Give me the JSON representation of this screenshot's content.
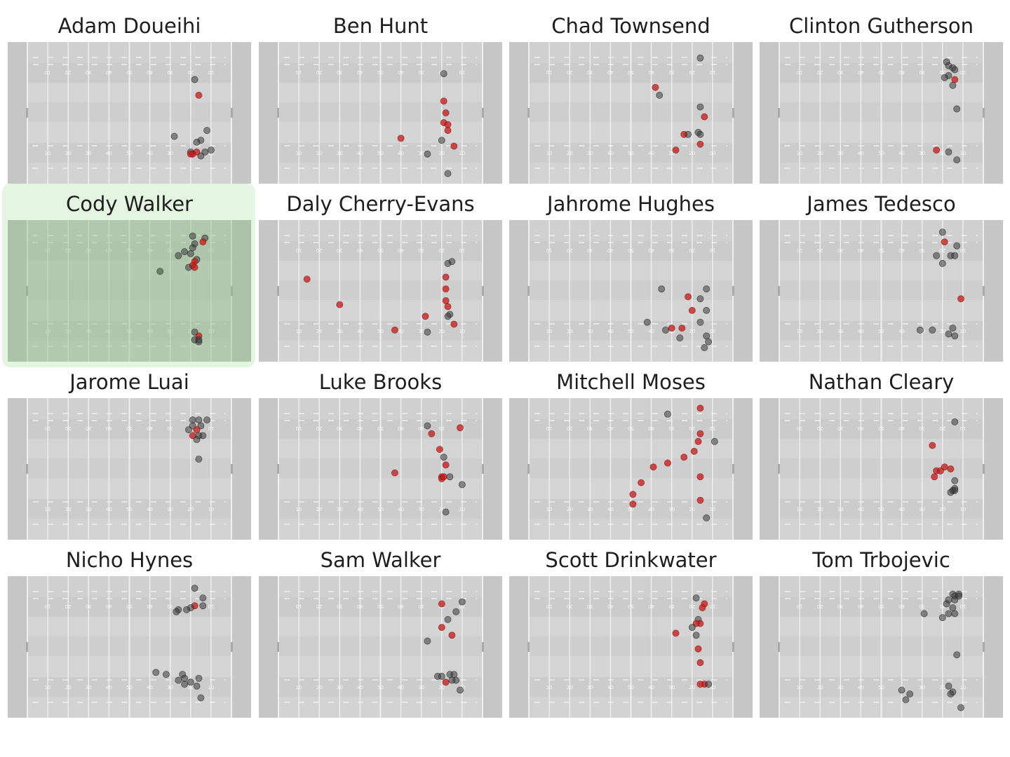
{
  "colors": {
    "made": "#c81e1e",
    "missed": "#3a3a3a",
    "highlight": "#e4f5e2",
    "field": "#cfcfcf"
  },
  "yard_labels": [
    "10",
    "20",
    "30",
    "40",
    "50",
    "40",
    "30",
    "20",
    "10"
  ],
  "selected_player": "Cody Walker",
  "chart_data": {
    "type": "scatter",
    "x_axis": "field position (0 = left goal line, 100 = right goal line)",
    "y_axis": "field width position (0 = top touchline, 68 = bottom touchline)",
    "xlim": [
      0,
      100
    ],
    "ylim": [
      0,
      68
    ],
    "legend_hidden": true,
    "panels": [
      {
        "player": "Adam Doueihi",
        "points": [
          [
            82,
            17,
            0
          ],
          [
            84,
            25,
            1
          ],
          [
            88,
            43,
            0
          ],
          [
            72,
            46,
            0
          ],
          [
            85,
            48,
            0
          ],
          [
            83,
            49,
            0
          ],
          [
            90,
            53,
            0
          ],
          [
            83,
            54,
            1
          ],
          [
            81,
            55,
            1
          ],
          [
            87,
            54,
            0
          ],
          [
            80,
            54,
            0
          ],
          [
            85,
            56,
            0
          ],
          [
            80,
            55,
            1
          ]
        ]
      },
      {
        "player": "Ben Hunt",
        "points": [
          [
            81,
            14,
            0
          ],
          [
            81,
            28,
            1
          ],
          [
            82,
            34,
            1
          ],
          [
            81,
            39,
            1
          ],
          [
            83,
            40,
            1
          ],
          [
            83,
            43,
            1
          ],
          [
            60,
            47,
            1
          ],
          [
            80,
            48,
            0
          ],
          [
            86,
            51,
            1
          ],
          [
            73,
            55,
            0
          ],
          [
            83,
            65,
            0
          ]
        ]
      },
      {
        "player": "Chad Townsend",
        "points": [
          [
            84,
            6,
            0
          ],
          [
            62,
            21,
            1
          ],
          [
            64,
            25,
            0
          ],
          [
            84,
            31,
            0
          ],
          [
            86,
            36,
            1
          ],
          [
            76,
            45,
            1
          ],
          [
            78,
            45,
            0
          ],
          [
            83,
            44,
            0
          ],
          [
            84,
            45,
            0
          ],
          [
            84,
            50,
            1
          ],
          [
            72,
            53,
            1
          ]
        ]
      },
      {
        "player": "Clinton Gutherson",
        "points": [
          [
            82,
            8,
            0
          ],
          [
            83,
            10,
            0
          ],
          [
            85,
            11,
            0
          ],
          [
            86,
            12,
            0
          ],
          [
            83,
            15,
            0
          ],
          [
            81,
            16,
            0
          ],
          [
            86,
            17,
            1
          ],
          [
            85,
            20,
            0
          ],
          [
            87,
            32,
            0
          ],
          [
            77,
            53,
            1
          ],
          [
            83,
            54,
            0
          ],
          [
            87,
            58,
            0
          ]
        ]
      },
      {
        "player": "Cody Walker",
        "points": [
          [
            81,
            6,
            0
          ],
          [
            87,
            7,
            0
          ],
          [
            86,
            9,
            1
          ],
          [
            82,
            10,
            0
          ],
          [
            81,
            12,
            0
          ],
          [
            77,
            14,
            0
          ],
          [
            74,
            16,
            0
          ],
          [
            80,
            15,
            0
          ],
          [
            83,
            18,
            0
          ],
          [
            82,
            19,
            1
          ],
          [
            81,
            21,
            1
          ],
          [
            79,
            22,
            0
          ],
          [
            82,
            22,
            1
          ],
          [
            65,
            24,
            0
          ],
          [
            82,
            55,
            0
          ],
          [
            84,
            57,
            1
          ],
          [
            84,
            60,
            0
          ],
          [
            82,
            59,
            0
          ],
          [
            84,
            59,
            0
          ]
        ]
      },
      {
        "player": "Daly Cherry-Evans",
        "points": [
          [
            85,
            19,
            0
          ],
          [
            83,
            20,
            0
          ],
          [
            82,
            27,
            1
          ],
          [
            82,
            33,
            1
          ],
          [
            82,
            39,
            1
          ],
          [
            83,
            42,
            1
          ],
          [
            84,
            46,
            0
          ],
          [
            83,
            47,
            0
          ],
          [
            86,
            51,
            1
          ],
          [
            72,
            47,
            1
          ],
          [
            73,
            55,
            0
          ],
          [
            57,
            54,
            1
          ],
          [
            30,
            41,
            1
          ],
          [
            14,
            28,
            1
          ]
        ]
      },
      {
        "player": "Jahrome Hughes",
        "points": [
          [
            65,
            33,
            0
          ],
          [
            78,
            37,
            1
          ],
          [
            87,
            33,
            0
          ],
          [
            84,
            38,
            0
          ],
          [
            80,
            44,
            1
          ],
          [
            87,
            44,
            0
          ],
          [
            58,
            50,
            0
          ],
          [
            84,
            50,
            0
          ],
          [
            70,
            53,
            1
          ],
          [
            75,
            53,
            1
          ],
          [
            67,
            54,
            0
          ],
          [
            87,
            57,
            0
          ],
          [
            74,
            58,
            0
          ],
          [
            88,
            60,
            0
          ],
          [
            86,
            63,
            0
          ]
        ]
      },
      {
        "player": "James Tedesco",
        "points": [
          [
            80,
            4,
            0
          ],
          [
            81,
            9,
            1
          ],
          [
            87,
            11,
            0
          ],
          [
            77,
            16,
            0
          ],
          [
            84,
            16,
            0
          ],
          [
            86,
            16,
            0
          ],
          [
            80,
            20,
            0
          ],
          [
            89,
            38,
            1
          ],
          [
            85,
            53,
            0
          ],
          [
            83,
            56,
            0
          ],
          [
            86,
            57,
            0
          ],
          [
            69,
            54,
            0
          ],
          [
            75,
            54,
            0
          ]
        ]
      },
      {
        "player": "Jarome Luai",
        "points": [
          [
            81,
            9,
            0
          ],
          [
            84,
            9,
            0
          ],
          [
            88,
            9,
            0
          ],
          [
            85,
            12,
            0
          ],
          [
            81,
            12,
            0
          ],
          [
            83,
            14,
            1
          ],
          [
            79,
            14,
            0
          ],
          [
            81,
            17,
            1
          ],
          [
            84,
            17,
            0
          ],
          [
            86,
            17,
            0
          ],
          [
            83,
            19,
            0
          ],
          [
            84,
            29,
            0
          ]
        ]
      },
      {
        "player": "Luke Brooks",
        "points": [
          [
            73,
            12,
            0
          ],
          [
            89,
            13,
            1
          ],
          [
            75,
            16,
            1
          ],
          [
            79,
            24,
            1
          ],
          [
            81,
            28,
            0
          ],
          [
            82,
            32,
            1
          ],
          [
            57,
            36,
            1
          ],
          [
            80,
            38,
            1
          ],
          [
            80,
            39,
            1
          ],
          [
            81,
            38,
            1
          ],
          [
            84,
            38,
            0
          ],
          [
            90,
            42,
            0
          ],
          [
            82,
            56,
            0
          ]
        ]
      },
      {
        "player": "Mitchell Moses",
        "points": [
          [
            84,
            3,
            1
          ],
          [
            68,
            6,
            0
          ],
          [
            84,
            16,
            1
          ],
          [
            91,
            20,
            0
          ],
          [
            83,
            20,
            1
          ],
          [
            81,
            25,
            1
          ],
          [
            76,
            28,
            1
          ],
          [
            68,
            31,
            1
          ],
          [
            61,
            33,
            1
          ],
          [
            55,
            41,
            1
          ],
          [
            84,
            38,
            1
          ],
          [
            51,
            47,
            1
          ],
          [
            51,
            52,
            1
          ],
          [
            84,
            50,
            1
          ],
          [
            87,
            59,
            0
          ]
        ]
      },
      {
        "player": "Nathan Cleary",
        "points": [
          [
            86,
            10,
            0
          ],
          [
            75,
            22,
            1
          ],
          [
            77,
            35,
            1
          ],
          [
            81,
            33,
            1
          ],
          [
            84,
            34,
            1
          ],
          [
            79,
            35,
            1
          ],
          [
            76,
            38,
            1
          ],
          [
            86,
            40,
            0
          ],
          [
            85,
            45,
            0
          ],
          [
            86,
            44,
            0
          ],
          [
            84,
            46,
            0
          ],
          [
            86,
            45,
            0
          ]
        ]
      },
      {
        "player": "Nicho Hynes",
        "points": [
          [
            82,
            4,
            0
          ],
          [
            86,
            9,
            0
          ],
          [
            86,
            13,
            0
          ],
          [
            82,
            13,
            1
          ],
          [
            80,
            14,
            0
          ],
          [
            74,
            15,
            0
          ],
          [
            73,
            16,
            0
          ],
          [
            78,
            15,
            0
          ],
          [
            63,
            47,
            0
          ],
          [
            68,
            48,
            0
          ],
          [
            76,
            48,
            0
          ],
          [
            74,
            51,
            0
          ],
          [
            77,
            50,
            0
          ],
          [
            84,
            50,
            0
          ],
          [
            83,
            54,
            0
          ],
          [
            77,
            53,
            0
          ],
          [
            80,
            52,
            0
          ],
          [
            85,
            60,
            0
          ]
        ]
      },
      {
        "player": "Sam Walker",
        "points": [
          [
            90,
            11,
            0
          ],
          [
            80,
            12,
            1
          ],
          [
            87,
            16,
            0
          ],
          [
            83,
            20,
            0
          ],
          [
            80,
            24,
            1
          ],
          [
            85,
            28,
            1
          ],
          [
            73,
            31,
            0
          ],
          [
            78,
            49,
            0
          ],
          [
            80,
            49,
            0
          ],
          [
            84,
            48,
            0
          ],
          [
            86,
            48,
            0
          ],
          [
            87,
            51,
            0
          ],
          [
            82,
            52,
            1
          ],
          [
            85,
            51,
            0
          ],
          [
            89,
            56,
            0
          ]
        ]
      },
      {
        "player": "Scott Drinkwater",
        "points": [
          [
            82,
            9,
            0
          ],
          [
            86,
            12,
            1
          ],
          [
            85,
            14,
            1
          ],
          [
            83,
            20,
            0
          ],
          [
            84,
            22,
            1
          ],
          [
            82,
            22,
            1
          ],
          [
            80,
            24,
            0
          ],
          [
            72,
            27,
            1
          ],
          [
            82,
            28,
            0
          ],
          [
            83,
            35,
            1
          ],
          [
            84,
            42,
            1
          ],
          [
            86,
            53,
            1
          ],
          [
            84,
            53,
            1
          ],
          [
            88,
            53,
            0
          ]
        ]
      },
      {
        "player": "Tom Trbojevic",
        "points": [
          [
            85,
            7,
            0
          ],
          [
            86,
            8,
            0
          ],
          [
            88,
            7,
            0
          ],
          [
            86,
            10,
            0
          ],
          [
            83,
            10,
            0
          ],
          [
            82,
            12,
            0
          ],
          [
            85,
            14,
            0
          ],
          [
            83,
            17,
            0
          ],
          [
            86,
            17,
            0
          ],
          [
            88,
            8,
            0
          ],
          [
            80,
            19,
            0
          ],
          [
            71,
            17,
            0
          ],
          [
            87,
            38,
            0
          ],
          [
            83,
            54,
            0
          ],
          [
            85,
            57,
            0
          ],
          [
            84,
            58,
            0
          ],
          [
            89,
            65,
            0
          ],
          [
            60,
            56,
            0
          ],
          [
            64,
            58,
            0
          ],
          [
            62,
            61,
            0
          ]
        ]
      }
    ]
  }
}
